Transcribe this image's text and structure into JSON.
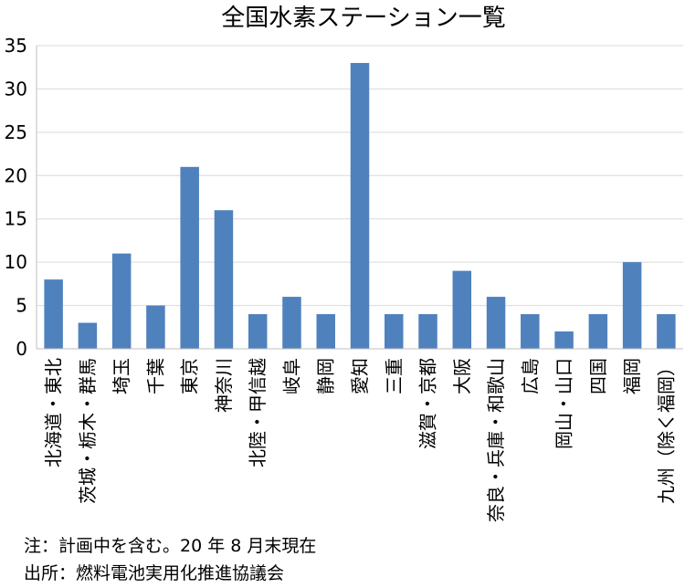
{
  "chart_data": {
    "type": "bar",
    "title": "全国水素ステーション一覧",
    "xlabel": "",
    "ylabel": "",
    "ylim": [
      0,
      35
    ],
    "yticks": [
      "0",
      "5",
      "10",
      "15",
      "20",
      "25",
      "30",
      "35"
    ],
    "grid": "horizontal",
    "bar_color": "#4f81bd",
    "categories": [
      "北海道・東北",
      "茨城・栃木・群馬",
      "埼玉",
      "千葉",
      "東京",
      "神奈川",
      "北陸・甲信越",
      "岐阜",
      "静岡",
      "愛知",
      "三重",
      "滋賀・京都",
      "大阪",
      "奈良・兵庫・和歌山",
      "広島",
      "岡山・山口",
      "四国",
      "福岡",
      "九州（除く福岡）"
    ],
    "values": [
      8,
      3,
      11,
      5,
      21,
      16,
      4,
      6,
      4,
      33,
      4,
      4,
      9,
      6,
      4,
      2,
      4,
      10,
      4
    ]
  },
  "notes": {
    "note_line": "注：計画中を含む。20 年 8 月末現在",
    "source_line": "出所：燃料電池実用化推進協議会"
  }
}
